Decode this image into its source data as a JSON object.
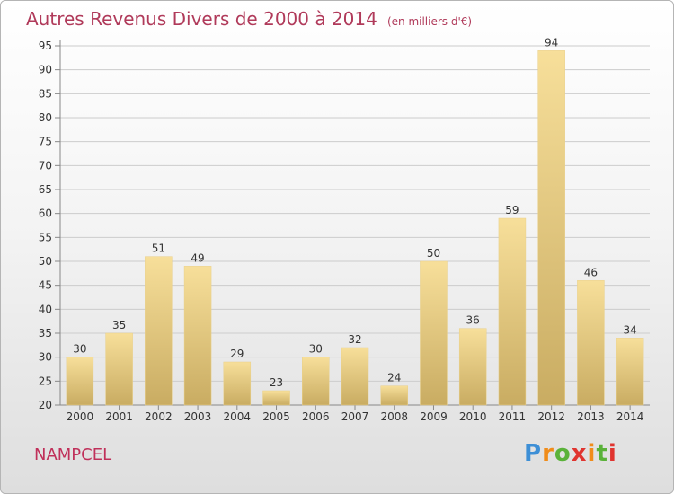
{
  "header": {
    "title": "Autres Revenus Divers de 2000 à 2014",
    "unit": "(en milliers d'€)"
  },
  "footer": {
    "city": "NAMPCEL",
    "logo": "Proxiti"
  },
  "colors": {
    "bar_light": "#f7df9a",
    "bar_dark": "#c9ac62",
    "grid": "#cccccc",
    "title": "#b03a5a"
  },
  "chart_data": {
    "type": "bar",
    "title": "Autres Revenus Divers de 2000 à 2014",
    "subtitle": "(en milliers d'€)",
    "categories": [
      "2000",
      "2001",
      "2002",
      "2003",
      "2004",
      "2005",
      "2006",
      "2007",
      "2008",
      "2009",
      "2010",
      "2011",
      "2012",
      "2013",
      "2014"
    ],
    "values": [
      30,
      35,
      51,
      49,
      29,
      23,
      30,
      32,
      24,
      50,
      36,
      59,
      94,
      46,
      34
    ],
    "ylim": [
      20,
      95
    ],
    "yticks": [
      20,
      25,
      30,
      35,
      40,
      45,
      50,
      55,
      60,
      65,
      70,
      75,
      80,
      85,
      90,
      95
    ],
    "grid": true,
    "legend": "none"
  }
}
